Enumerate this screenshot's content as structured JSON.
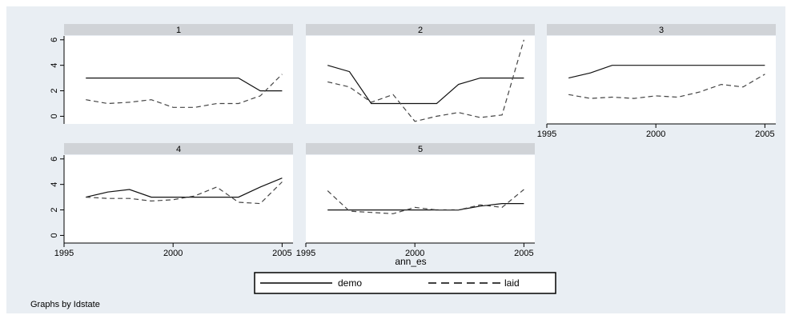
{
  "chart_data": {
    "type": "line",
    "xlabel": "ann_es",
    "note": "Graphs by Idstate",
    "xticks": [
      "1995",
      "2000",
      "2005"
    ],
    "yticks": [
      "0",
      "2",
      "4",
      "6"
    ],
    "xlim": [
      1995,
      2005.5
    ],
    "ylim": [
      -0.6,
      6.3
    ],
    "legend": {
      "position": "bottom-center"
    },
    "series_styles": [
      {
        "name": "demo",
        "dash": "solid"
      },
      {
        "name": "laid",
        "dash": "dashed"
      }
    ],
    "panels": [
      {
        "title": "1",
        "series": [
          {
            "name": "demo",
            "x": [
              1996,
              1997,
              1998,
              1999,
              2000,
              2001,
              2002,
              2003,
              2004,
              2005
            ],
            "values": [
              3,
              3,
              3,
              3,
              3,
              3,
              3,
              3,
              2,
              2
            ]
          },
          {
            "name": "laid",
            "x": [
              1996,
              1997,
              1998,
              1999,
              2000,
              2001,
              2002,
              2003,
              2004,
              2005
            ],
            "values": [
              1.3,
              1.0,
              1.1,
              1.3,
              0.7,
              0.7,
              1.0,
              1.0,
              1.6,
              3.3
            ]
          }
        ]
      },
      {
        "title": "2",
        "series": [
          {
            "name": "demo",
            "x": [
              1996,
              1997,
              1998,
              1999,
              2000,
              2001,
              2002,
              2003,
              2004,
              2005
            ],
            "values": [
              4,
              3.5,
              1,
              1,
              1,
              1,
              2.5,
              3,
              3,
              3
            ]
          },
          {
            "name": "laid",
            "x": [
              1996,
              1997,
              1998,
              1999,
              2000,
              2001,
              2002,
              2003,
              2004,
              2005
            ],
            "values": [
              2.7,
              2.3,
              1.1,
              1.7,
              -0.4,
              0,
              0.3,
              -0.1,
              0.1,
              6
            ]
          }
        ]
      },
      {
        "title": "3",
        "series": [
          {
            "name": "demo",
            "x": [
              1996,
              1997,
              1998,
              1999,
              2000,
              2001,
              2002,
              2003,
              2004,
              2005
            ],
            "values": [
              3,
              3.4,
              4,
              4,
              4,
              4,
              4,
              4,
              4,
              4
            ]
          },
          {
            "name": "laid",
            "x": [
              1996,
              1997,
              1998,
              1999,
              2000,
              2001,
              2002,
              2003,
              2004,
              2005
            ],
            "values": [
              1.7,
              1.4,
              1.5,
              1.4,
              1.6,
              1.5,
              1.9,
              2.5,
              2.3,
              3.3
            ]
          }
        ]
      },
      {
        "title": "4",
        "series": [
          {
            "name": "demo",
            "x": [
              1996,
              1997,
              1998,
              1999,
              2000,
              2001,
              2002,
              2003,
              2004,
              2005
            ],
            "values": [
              3,
              3.4,
              3.6,
              3,
              3,
              3,
              3,
              3,
              3.8,
              4.5
            ]
          },
          {
            "name": "laid",
            "x": [
              1996,
              1997,
              1998,
              1999,
              2000,
              2001,
              2002,
              2003,
              2004,
              2005
            ],
            "values": [
              3,
              2.9,
              2.9,
              2.7,
              2.8,
              3.1,
              3.8,
              2.6,
              2.5,
              4.2
            ]
          }
        ]
      },
      {
        "title": "5",
        "series": [
          {
            "name": "demo",
            "x": [
              1996,
              1997,
              1998,
              1999,
              2000,
              2001,
              2002,
              2003,
              2004,
              2005
            ],
            "values": [
              2,
              2,
              2,
              2,
              2,
              2,
              2,
              2.3,
              2.5,
              2.5
            ]
          },
          {
            "name": "laid",
            "x": [
              1996,
              1997,
              1998,
              1999,
              2000,
              2001,
              2002,
              2003,
              2004,
              2005
            ],
            "values": [
              3.5,
              1.9,
              1.8,
              1.7,
              2.2,
              2,
              2,
              2.4,
              2.2,
              3.6
            ]
          }
        ]
      }
    ]
  }
}
